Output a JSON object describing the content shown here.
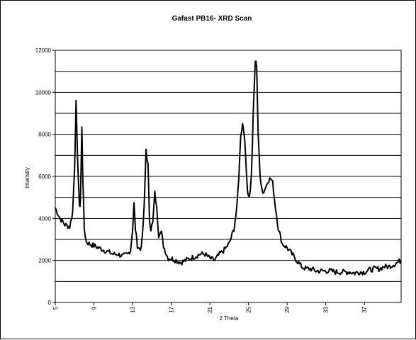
{
  "chart_data": {
    "type": "line",
    "title": "Gafast PB16- XRD Scan",
    "xlabel": "2 Theta",
    "ylabel": "Intensity",
    "xlim": [
      5,
      40.8
    ],
    "ylim": [
      0,
      12000
    ],
    "x_ticks": [
      5,
      9,
      13,
      17,
      21,
      25,
      29,
      33,
      37
    ],
    "y_ticks": [
      0,
      2000,
      4000,
      6000,
      8000,
      10000,
      12000
    ],
    "grid": "horizontal",
    "legend": "none",
    "colors": {
      "line": "#000000",
      "background": "#ffffff",
      "grid": "#000000"
    },
    "series": [
      {
        "x": [
          5.0,
          5.5,
          6.0,
          6.5,
          6.8,
          7.0,
          7.15,
          7.3,
          7.5,
          7.6,
          7.75,
          7.85,
          8.0,
          8.2,
          8.5,
          9.0,
          9.5,
          10.0,
          10.5,
          11.0,
          11.5,
          12.0,
          12.5,
          12.8,
          13.0,
          13.15,
          13.3,
          13.5,
          13.8,
          14.0,
          14.2,
          14.4,
          14.6,
          14.75,
          14.9,
          15.1,
          15.3,
          15.5,
          15.7,
          15.85,
          16.0,
          16.2,
          16.5,
          16.7,
          17.0,
          17.5,
          18.0,
          18.5,
          19.0,
          19.5,
          20.0,
          20.5,
          21.0,
          21.5,
          22.0,
          22.5,
          23.0,
          23.5,
          23.8,
          24.0,
          24.2,
          24.4,
          24.5,
          24.7,
          24.9,
          25.1,
          25.3,
          25.5,
          25.7,
          25.85,
          26.0,
          26.2,
          26.5,
          26.8,
          27.0,
          27.3,
          27.5,
          27.8,
          28.1,
          28.5,
          29.0,
          29.5,
          30.0,
          30.5,
          31.0,
          31.5,
          32.0,
          32.5,
          33.0,
          33.5,
          34.0,
          34.5,
          35.0,
          35.5,
          36.0,
          36.5,
          37.0,
          37.5,
          38.0,
          38.5,
          39.0,
          39.5,
          40.0,
          40.4,
          40.8
        ],
        "y": [
          4500,
          4000,
          3700,
          3600,
          4300,
          6500,
          9500,
          7000,
          4500,
          4800,
          8300,
          6000,
          3500,
          2900,
          2800,
          2700,
          2600,
          2500,
          2400,
          2300,
          2300,
          2200,
          2300,
          2500,
          3500,
          4700,
          3500,
          2700,
          2500,
          3000,
          4500,
          7300,
          6500,
          4000,
          3500,
          3800,
          5200,
          4500,
          3200,
          3400,
          3300,
          2700,
          2300,
          2100,
          2100,
          2000,
          1900,
          2000,
          2100,
          2200,
          2300,
          2300,
          2100,
          2000,
          2300,
          2500,
          2800,
          3500,
          4500,
          6000,
          8000,
          8500,
          8300,
          7000,
          5300,
          5000,
          6000,
          9000,
          11500,
          11300,
          8000,
          6000,
          5200,
          5500,
          5800,
          5900,
          5700,
          4500,
          3500,
          2800,
          2600,
          2300,
          2000,
          1700,
          1600,
          1600,
          1500,
          1500,
          1500,
          1500,
          1450,
          1450,
          1450,
          1450,
          1400,
          1450,
          1450,
          1550,
          1600,
          1600,
          1700,
          1700,
          1800,
          1900,
          2000
        ]
      }
    ]
  }
}
